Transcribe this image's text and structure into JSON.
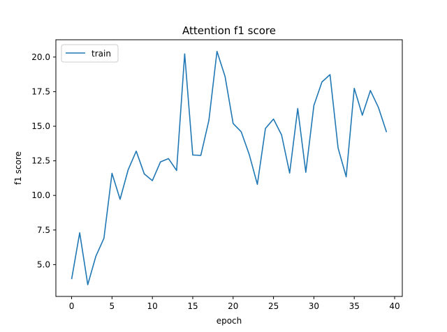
{
  "chart_data": {
    "type": "line",
    "title": "Attention f1 score",
    "xlabel": "epoch",
    "ylabel": "f1 score",
    "xlim": [
      -1.95,
      40.95
    ],
    "ylim": [
      2.7,
      21.25
    ],
    "xticks": [
      0,
      5,
      10,
      15,
      20,
      25,
      30,
      35,
      40
    ],
    "xtick_labels": [
      "0",
      "5",
      "10",
      "15",
      "20",
      "25",
      "30",
      "35",
      "40"
    ],
    "yticks": [
      5.0,
      7.5,
      10.0,
      12.5,
      15.0,
      17.5,
      20.0
    ],
    "ytick_labels": [
      "5.0",
      "7.5",
      "10.0",
      "12.5",
      "15.0",
      "17.5",
      "20.0"
    ],
    "grid": false,
    "legend_position": "top-left",
    "series": [
      {
        "name": "train",
        "color": "#1f77b4",
        "x": [
          0,
          1,
          2,
          3,
          4,
          5,
          6,
          7,
          8,
          9,
          10,
          11,
          12,
          13,
          14,
          15,
          16,
          17,
          18,
          19,
          20,
          21,
          22,
          23,
          24,
          25,
          26,
          27,
          28,
          29,
          30,
          31,
          32,
          33,
          34,
          35,
          36,
          37,
          38,
          39
        ],
        "y": [
          3.95,
          7.3,
          3.55,
          5.6,
          6.9,
          11.6,
          9.72,
          11.85,
          13.2,
          11.55,
          11.07,
          12.42,
          12.66,
          11.8,
          20.23,
          12.92,
          12.89,
          15.43,
          20.41,
          18.6,
          15.2,
          14.6,
          12.95,
          10.8,
          14.84,
          15.52,
          14.37,
          11.62,
          16.28,
          11.67,
          16.5,
          18.2,
          18.73,
          13.42,
          11.35,
          17.74,
          15.8,
          17.58,
          16.35,
          14.57
        ]
      }
    ]
  }
}
